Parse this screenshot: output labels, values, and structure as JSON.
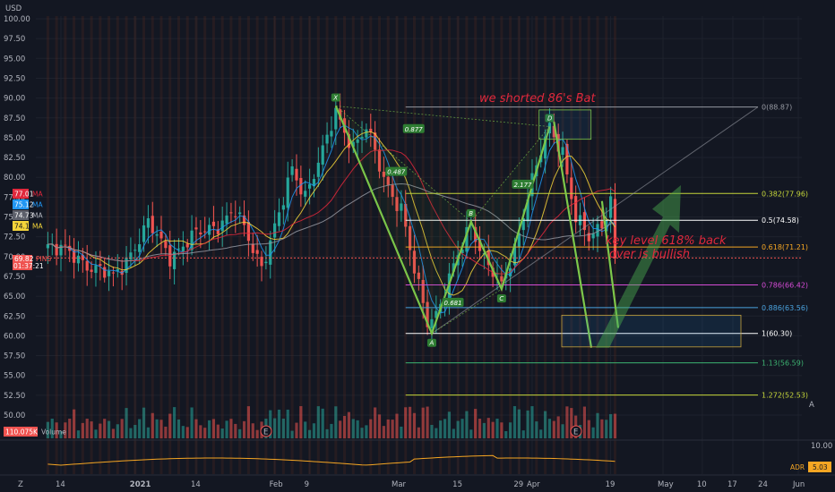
{
  "currency": "USD",
  "ticker_tag": "PINS",
  "price_tag": "69.82",
  "countdown": "01:37:21",
  "volume_tag": "110.075K",
  "volume_label": "Volume",
  "adr_label": "ADR",
  "adr_value": "5.03",
  "osc_top": "10.00",
  "bottom_left_letter": "Z",
  "bottom_right_letter": "A",
  "ma_tags": [
    {
      "value": "77.01",
      "label": "MA",
      "color": "#e0283c"
    },
    {
      "value": "75.12",
      "label": "MA",
      "color": "#2196f3"
    },
    {
      "value": "74.73",
      "label": "MA",
      "color": "#9598a1"
    },
    {
      "value": "74.14",
      "label": "MA",
      "color": "#f5d53a"
    }
  ],
  "annotations": {
    "shorted": "we shorted 86's Bat",
    "key_level_1": "key level 618% back",
    "key_level_2": "over is bullish"
  },
  "chart_data": {
    "type": "candlestick",
    "symbol": "PINS",
    "ylim": [
      47.5,
      101
    ],
    "y_ticks": [
      "100.00",
      "97.50",
      "95.00",
      "92.50",
      "90.00",
      "87.50",
      "85.00",
      "82.50",
      "80.00",
      "77.50",
      "75.00",
      "72.50",
      "70.00",
      "67.50",
      "65.00",
      "62.50",
      "60.00",
      "57.50",
      "55.00",
      "52.50",
      "50.00"
    ],
    "x_ticks": [
      {
        "label": "14",
        "day": 0
      },
      {
        "label": "2021",
        "day": 17
      },
      {
        "label": "14",
        "day": 31
      },
      {
        "label": "Feb",
        "day": 49
      },
      {
        "label": "9",
        "day": 57
      },
      {
        "label": "Mar",
        "day": 77
      },
      {
        "label": "15",
        "day": 91
      },
      {
        "label": "29",
        "day": 105
      },
      {
        "label": "Apr",
        "day": 108
      },
      {
        "label": "19",
        "day": 126
      },
      {
        "label": "May",
        "day": 138
      },
      {
        "label": "10",
        "day": 147
      },
      {
        "label": "17",
        "day": 154
      },
      {
        "label": "24",
        "day": 161
      },
      {
        "label": "Jun",
        "day": 169
      }
    ],
    "earnings_days": [
      57,
      126
    ],
    "earnings_symbol": "E",
    "anchors": [
      {
        "day": -3,
        "price": 71.5
      },
      {
        "day": 5,
        "price": 69.5
      },
      {
        "day": 12,
        "price": 67.2
      },
      {
        "day": 20,
        "price": 74.0
      },
      {
        "day": 25,
        "price": 70.2
      },
      {
        "day": 32,
        "price": 73.0
      },
      {
        "day": 40,
        "price": 75.5
      },
      {
        "day": 46,
        "price": 69.0
      },
      {
        "day": 50,
        "price": 75.0
      },
      {
        "day": 53,
        "price": 81.0
      },
      {
        "day": 56,
        "price": 78.0
      },
      {
        "day": 60,
        "price": 83.0
      },
      {
        "day": 63,
        "price": 88.2
      },
      {
        "day": 67,
        "price": 84.0
      },
      {
        "day": 70,
        "price": 86.0
      },
      {
        "day": 74,
        "price": 80.0
      },
      {
        "day": 78,
        "price": 76.0
      },
      {
        "day": 81,
        "price": 68.0
      },
      {
        "day": 84,
        "price": 62.0
      },
      {
        "day": 86,
        "price": 63.0
      },
      {
        "day": 89,
        "price": 67.0
      },
      {
        "day": 94,
        "price": 74.2
      },
      {
        "day": 97,
        "price": 70.0
      },
      {
        "day": 101,
        "price": 66.0
      },
      {
        "day": 104,
        "price": 71.0
      },
      {
        "day": 107,
        "price": 78.0
      },
      {
        "day": 110,
        "price": 83.0
      },
      {
        "day": 112,
        "price": 86.0
      },
      {
        "day": 115,
        "price": 83.5
      },
      {
        "day": 118,
        "price": 75.0
      },
      {
        "day": 121,
        "price": 72.0
      },
      {
        "day": 124,
        "price": 74.0
      },
      {
        "day": 126,
        "price": 77.5
      },
      {
        "day": 127,
        "price": 69.82
      }
    ],
    "harmonic_points": [
      {
        "label": "X",
        "day": 63,
        "price": 89.0
      },
      {
        "label": "A",
        "day": 85,
        "price": 60.3
      },
      {
        "label": "B",
        "day": 94,
        "price": 74.4
      },
      {
        "label": "C",
        "day": 101,
        "price": 65.9
      },
      {
        "label": "D",
        "day": 112,
        "price": 86.4
      }
    ],
    "ratios": [
      {
        "label": "0.877",
        "day": 79,
        "price": 85.8
      },
      {
        "label": "0.487",
        "day": 75,
        "price": 80.4
      },
      {
        "label": "2.177",
        "day": 104,
        "price": 78.8
      },
      {
        "label": "0.681",
        "day": 88,
        "price": 63.9
      }
    ],
    "fib_levels": [
      {
        "ratio": "0",
        "price": 88.87,
        "color": "#9598a1"
      },
      {
        "ratio": "0.382",
        "price": 77.96,
        "color": "#c6d63a"
      },
      {
        "ratio": "0.5",
        "price": 74.58,
        "color": "#ffffff"
      },
      {
        "ratio": "0.618",
        "price": 71.21,
        "color": "#f5a623"
      },
      {
        "ratio": "0.786",
        "price": 66.42,
        "color": "#d64bd6"
      },
      {
        "ratio": "0.886",
        "price": 63.56,
        "color": "#4aa3df"
      },
      {
        "ratio": "1",
        "price": 60.3,
        "color": "#ffffff"
      },
      {
        "ratio": "1.13",
        "price": 56.59,
        "color": "#3cb371"
      },
      {
        "ratio": "1.272",
        "price": 52.53,
        "color": "#c6d63a"
      }
    ],
    "colors": {
      "up": "#26a69a",
      "down": "#ef5350",
      "bg": "#131722",
      "grid": "#1e222d",
      "text": "#b2b5be"
    }
  }
}
